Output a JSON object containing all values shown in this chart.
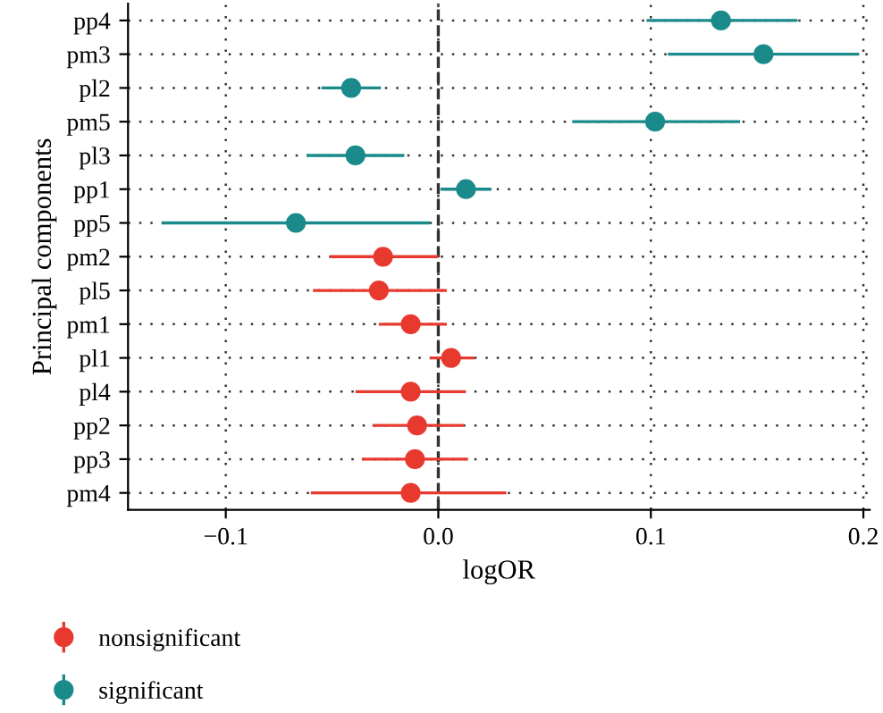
{
  "chart_data": {
    "type": "scatter",
    "orientation": "horizontal",
    "xlabel": "logOR",
    "ylabel": "Principal components",
    "categories": [
      "pp4",
      "pm3",
      "pl2",
      "pm5",
      "pl3",
      "pp1",
      "pp5",
      "pm2",
      "pl5",
      "pm1",
      "pl1",
      "pl4",
      "pp2",
      "pp3",
      "pm4"
    ],
    "series": [
      {
        "name": "nonsignificant",
        "color": "#e8392f",
        "values": [
          null,
          null,
          null,
          null,
          null,
          null,
          null,
          -0.026,
          -0.028,
          -0.013,
          0.006,
          -0.013,
          -0.01,
          -0.011,
          -0.013
        ],
        "errors": [
          null,
          null,
          null,
          null,
          null,
          null,
          null,
          [
            -0.051,
            0.0
          ],
          [
            -0.059,
            0.004
          ],
          [
            -0.028,
            0.004
          ],
          [
            -0.004,
            0.017
          ],
          [
            -0.039,
            0.013
          ],
          [
            -0.031,
            0.012
          ],
          [
            -0.036,
            0.014
          ],
          [
            -0.06,
            0.032
          ]
        ]
      },
      {
        "name": "significant",
        "color": "#1a8a8a",
        "values": [
          0.133,
          0.153,
          -0.041,
          0.102,
          -0.039,
          0.013,
          -0.067,
          null,
          null,
          null,
          null,
          null,
          null,
          null,
          null
        ],
        "errors": [
          [
            0.098,
            0.169
          ],
          [
            0.108,
            0.198
          ],
          [
            -0.055,
            -0.027
          ],
          [
            0.063,
            0.142
          ],
          [
            -0.062,
            -0.016
          ],
          [
            0.001,
            0.025
          ],
          [
            -0.13,
            -0.004
          ],
          null,
          null,
          null,
          null,
          null,
          null,
          null,
          null
        ]
      }
    ],
    "xlim": [
      -0.146,
      0.203
    ],
    "xticks": [
      {
        "value": -0.1,
        "label": "−0.1"
      },
      {
        "value": 0,
        "label": "0.0"
      },
      {
        "value": 0.1,
        "label": "0.1"
      },
      {
        "value": 0.2,
        "label": "0.2"
      }
    ],
    "ref_lines": [
      {
        "axis": "x",
        "value": 0,
        "line_style": "dashed",
        "color": "#333333"
      }
    ],
    "grid": true,
    "marker": "circle",
    "legend": "bottom"
  }
}
